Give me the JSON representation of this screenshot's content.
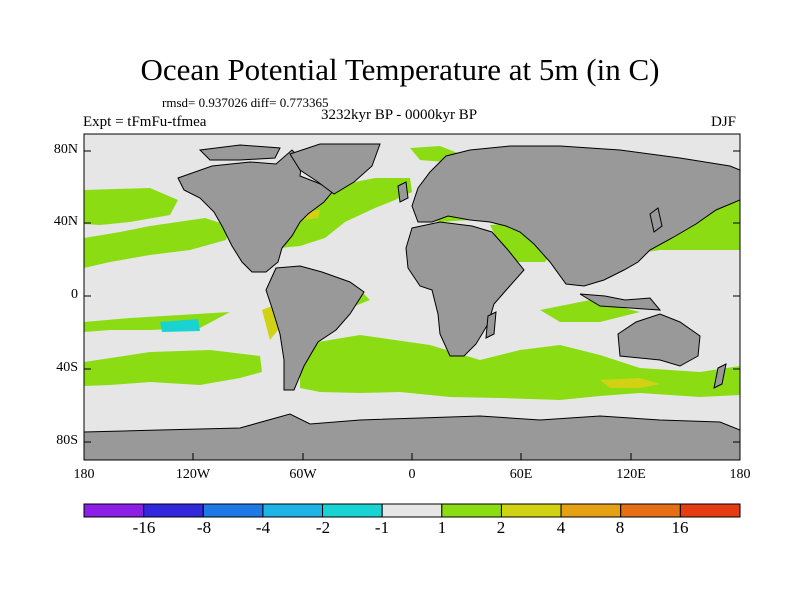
{
  "title": "Ocean Potential Temperature at 5m (in C)",
  "stats": "rmsd= 0.937026 diff= 0.773365",
  "period": "3232kyr BP - 0000kyr BP",
  "experiment": "Expt = tFmFu-tfmea",
  "season": "DJF",
  "lat_labels": [
    "80N",
    "40N",
    "0",
    "40S",
    "80S"
  ],
  "lon_labels": [
    "180",
    "120W",
    "60W",
    "0",
    "60E",
    "120E",
    "180"
  ],
  "colorbar": {
    "colors": [
      "#8c1ee6",
      "#3228dc",
      "#1e78e6",
      "#1eb4e6",
      "#19d2d2",
      "#e6e6e6",
      "#8cdc14",
      "#d2d214",
      "#e6a014",
      "#e66e14",
      "#e63c14"
    ],
    "labels": [
      "-16",
      "-8",
      "-4",
      "-2",
      "-1",
      "1",
      "2",
      "4",
      "8",
      "16"
    ]
  },
  "map_colors": {
    "ocean": "#e6e6e6",
    "land": "#999999",
    "warm": "#8cdc14",
    "warmer": "#d2d214",
    "cool": "#19d2d2"
  }
}
